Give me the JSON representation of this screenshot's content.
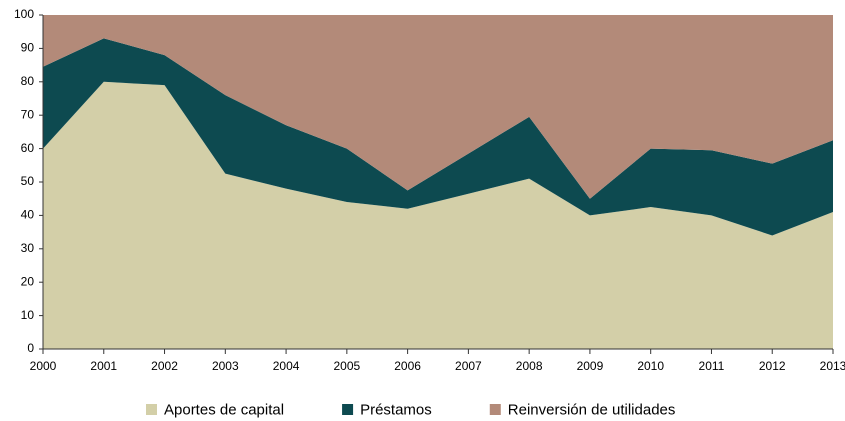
{
  "chart_data": {
    "type": "stacked_area",
    "categories": [
      "2000",
      "2001",
      "2002",
      "2003",
      "2004",
      "2005",
      "2006",
      "2007",
      "2008",
      "2009",
      "2010",
      "2011",
      "2012",
      "2013"
    ],
    "series": [
      {
        "name": "Aportes de capital",
        "color": "#d3cfa8",
        "values": [
          60,
          80,
          79,
          52.5,
          48,
          44,
          42,
          46.5,
          51,
          40,
          42.5,
          40,
          34,
          41
        ]
      },
      {
        "name": "Préstamos",
        "color": "#0d4a50",
        "values": [
          24.5,
          13,
          9,
          23.5,
          19,
          16,
          5.5,
          12,
          18.5,
          5,
          17.5,
          19.5,
          21.5,
          21.5
        ]
      },
      {
        "name": "Reinversión de utilidades",
        "color": "#b38a79",
        "values": [
          15.5,
          7,
          12,
          24,
          33,
          40,
          52.5,
          41.5,
          30.5,
          55,
          40,
          40.5,
          44.5,
          37.5
        ]
      }
    ],
    "ylim": [
      0,
      100
    ],
    "yticks": [
      0,
      10,
      20,
      30,
      40,
      50,
      60,
      70,
      80,
      90,
      100
    ],
    "grid": false,
    "legend": "bottom"
  }
}
